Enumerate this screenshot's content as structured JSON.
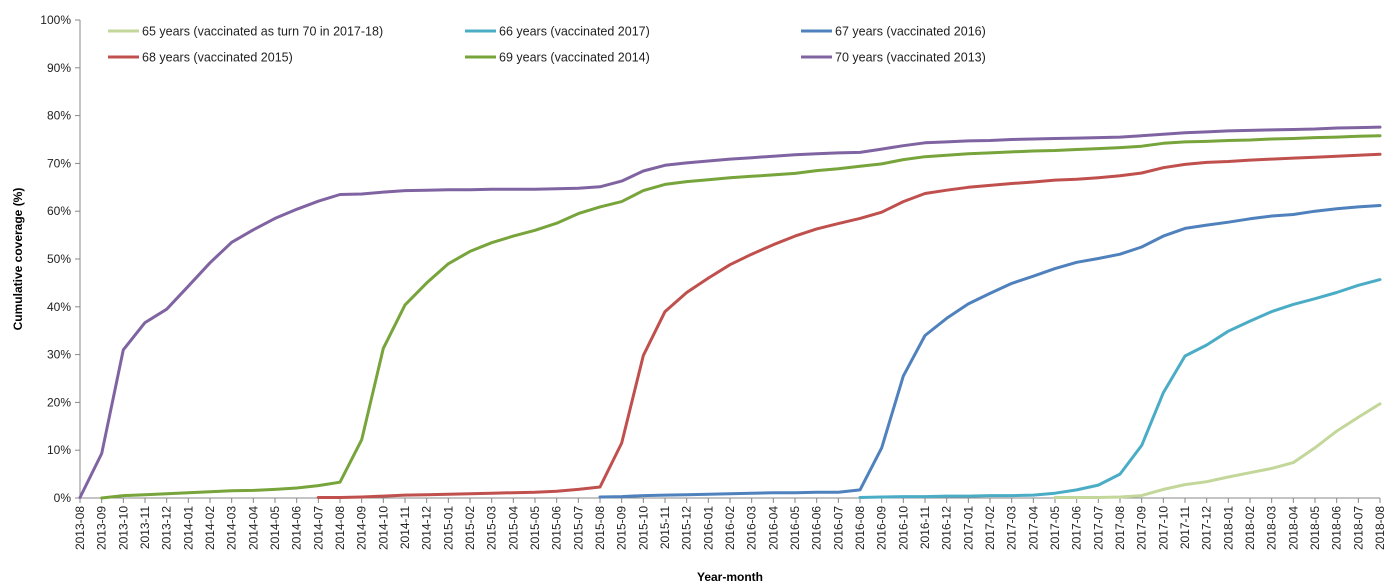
{
  "chart_data": {
    "type": "line",
    "title": "",
    "xlabel": "Year-month",
    "ylabel": "Cumulative coverage (%)",
    "ylim": [
      0,
      100
    ],
    "y_ticks": [
      0,
      10,
      20,
      30,
      40,
      50,
      60,
      70,
      80,
      90,
      100
    ],
    "y_tick_labels": [
      "0%",
      "10%",
      "20%",
      "30%",
      "40%",
      "50%",
      "60%",
      "70%",
      "80%",
      "90%",
      "100%"
    ],
    "grid": false,
    "legend_position": "top",
    "categories": [
      "2013-08",
      "2013-09",
      "2013-10",
      "2013-11",
      "2013-12",
      "2014-01",
      "2014-02",
      "2014-03",
      "2014-04",
      "2014-05",
      "2014-06",
      "2014-07",
      "2014-08",
      "2014-09",
      "2014-10",
      "2014-11",
      "2014-12",
      "2015-01",
      "2015-02",
      "2015-03",
      "2015-04",
      "2015-05",
      "2015-06",
      "2015-07",
      "2015-08",
      "2015-09",
      "2015-10",
      "2015-11",
      "2015-12",
      "2016-01",
      "2016-02",
      "2016-03",
      "2016-04",
      "2016-05",
      "2016-06",
      "2016-07",
      "2016-08",
      "2016-09",
      "2016-10",
      "2016-11",
      "2016-12",
      "2017-01",
      "2017-02",
      "2017-03",
      "2017-04",
      "2017-05",
      "2017-06",
      "2017-07",
      "2017-08",
      "2017-09",
      "2017-10",
      "2017-11",
      "2017-12",
      "2018-01",
      "2018-02",
      "2018-03",
      "2018-04",
      "2018-05",
      "2018-06",
      "2018-07",
      "2018-08"
    ],
    "series": [
      {
        "name": "65 years (vaccinated as turn 70 in 2017-18)",
        "color": "#c4d79b",
        "values": [
          null,
          null,
          null,
          null,
          null,
          null,
          null,
          null,
          null,
          null,
          null,
          null,
          null,
          null,
          null,
          null,
          null,
          null,
          null,
          null,
          null,
          null,
          null,
          null,
          null,
          null,
          null,
          null,
          null,
          null,
          null,
          null,
          null,
          null,
          null,
          null,
          null,
          null,
          null,
          null,
          null,
          null,
          null,
          null,
          null,
          0.1,
          0.1,
          0.1,
          0.2,
          0.5,
          1.8,
          2.8,
          3.4,
          4.4,
          5.3,
          6.2,
          7.4,
          10.5,
          14.0,
          16.9,
          19.7
        ]
      },
      {
        "name": "66 years (vaccinated 2017)",
        "color": "#4bacc6",
        "values": [
          null,
          null,
          null,
          null,
          null,
          null,
          null,
          null,
          null,
          null,
          null,
          null,
          null,
          null,
          null,
          null,
          null,
          null,
          null,
          null,
          null,
          null,
          null,
          null,
          null,
          null,
          null,
          null,
          null,
          null,
          null,
          null,
          null,
          null,
          null,
          null,
          0.1,
          0.2,
          0.3,
          0.3,
          0.4,
          0.4,
          0.5,
          0.5,
          0.6,
          1.0,
          1.7,
          2.7,
          5.0,
          11.0,
          22.0,
          29.7,
          32.0,
          34.9,
          37.0,
          39.0,
          40.5,
          41.7,
          43.0,
          44.5,
          45.7
        ]
      },
      {
        "name": "67 years (vaccinated 2016)",
        "color": "#4f81bd",
        "values": [
          null,
          null,
          null,
          null,
          null,
          null,
          null,
          null,
          null,
          null,
          null,
          null,
          null,
          null,
          null,
          null,
          null,
          null,
          null,
          null,
          null,
          null,
          null,
          null,
          0.2,
          0.3,
          0.5,
          0.6,
          0.7,
          0.8,
          0.9,
          1.0,
          1.1,
          1.1,
          1.2,
          1.2,
          1.7,
          10.5,
          25.5,
          34.0,
          37.6,
          40.6,
          42.8,
          44.9,
          46.4,
          48.0,
          49.3,
          50.1,
          51.0,
          52.5,
          54.8,
          56.4,
          57.1,
          57.7,
          58.4,
          59.0,
          59.3,
          60.0,
          60.5,
          60.9,
          61.2
        ]
      },
      {
        "name": "68 years (vaccinated 2015)",
        "color": "#c0504d",
        "values": [
          null,
          null,
          null,
          null,
          null,
          null,
          null,
          null,
          null,
          null,
          null,
          0.1,
          0.1,
          0.2,
          0.4,
          0.6,
          0.7,
          0.8,
          0.9,
          1.0,
          1.1,
          1.2,
          1.4,
          1.8,
          2.3,
          11.5,
          29.8,
          39.0,
          43.0,
          46.0,
          48.8,
          51.0,
          53.0,
          54.8,
          56.3,
          57.4,
          58.5,
          59.8,
          62.0,
          63.7,
          64.4,
          65.0,
          65.4,
          65.8,
          66.1,
          66.5,
          66.7,
          67.0,
          67.4,
          68.0,
          69.1,
          69.8,
          70.2,
          70.4,
          70.7,
          70.9,
          71.1,
          71.3,
          71.5,
          71.7,
          71.9
        ]
      },
      {
        "name": "69  years (vaccinated 2014)",
        "color": "#77a43b",
        "values": [
          null,
          0.0,
          0.5,
          0.7,
          0.9,
          1.1,
          1.3,
          1.5,
          1.6,
          1.8,
          2.1,
          2.6,
          3.3,
          12.2,
          31.3,
          40.4,
          45.0,
          49.0,
          51.6,
          53.4,
          54.8,
          56.0,
          57.5,
          59.5,
          60.9,
          62.0,
          64.3,
          65.6,
          66.2,
          66.6,
          67.0,
          67.3,
          67.6,
          67.9,
          68.5,
          68.9,
          69.4,
          69.9,
          70.8,
          71.4,
          71.7,
          72.0,
          72.2,
          72.4,
          72.6,
          72.7,
          72.9,
          73.1,
          73.3,
          73.6,
          74.2,
          74.5,
          74.6,
          74.8,
          74.9,
          75.1,
          75.2,
          75.4,
          75.5,
          75.7,
          75.8
        ]
      },
      {
        "name": "70 years (vaccinated 2013)",
        "color": "#8064a2",
        "values": [
          0.1,
          9.3,
          31.0,
          36.7,
          39.5,
          44.3,
          49.2,
          53.5,
          56.1,
          58.5,
          60.4,
          62.1,
          63.5,
          63.6,
          64.0,
          64.3,
          64.4,
          64.5,
          64.5,
          64.6,
          64.6,
          64.6,
          64.7,
          64.8,
          65.1,
          66.3,
          68.4,
          69.6,
          70.1,
          70.5,
          70.9,
          71.2,
          71.5,
          71.8,
          72.0,
          72.2,
          72.3,
          73.0,
          73.7,
          74.3,
          74.5,
          74.7,
          74.8,
          75.0,
          75.1,
          75.2,
          75.3,
          75.4,
          75.5,
          75.8,
          76.1,
          76.4,
          76.6,
          76.8,
          76.9,
          77.0,
          77.1,
          77.2,
          77.4,
          77.5,
          77.6
        ]
      }
    ]
  }
}
